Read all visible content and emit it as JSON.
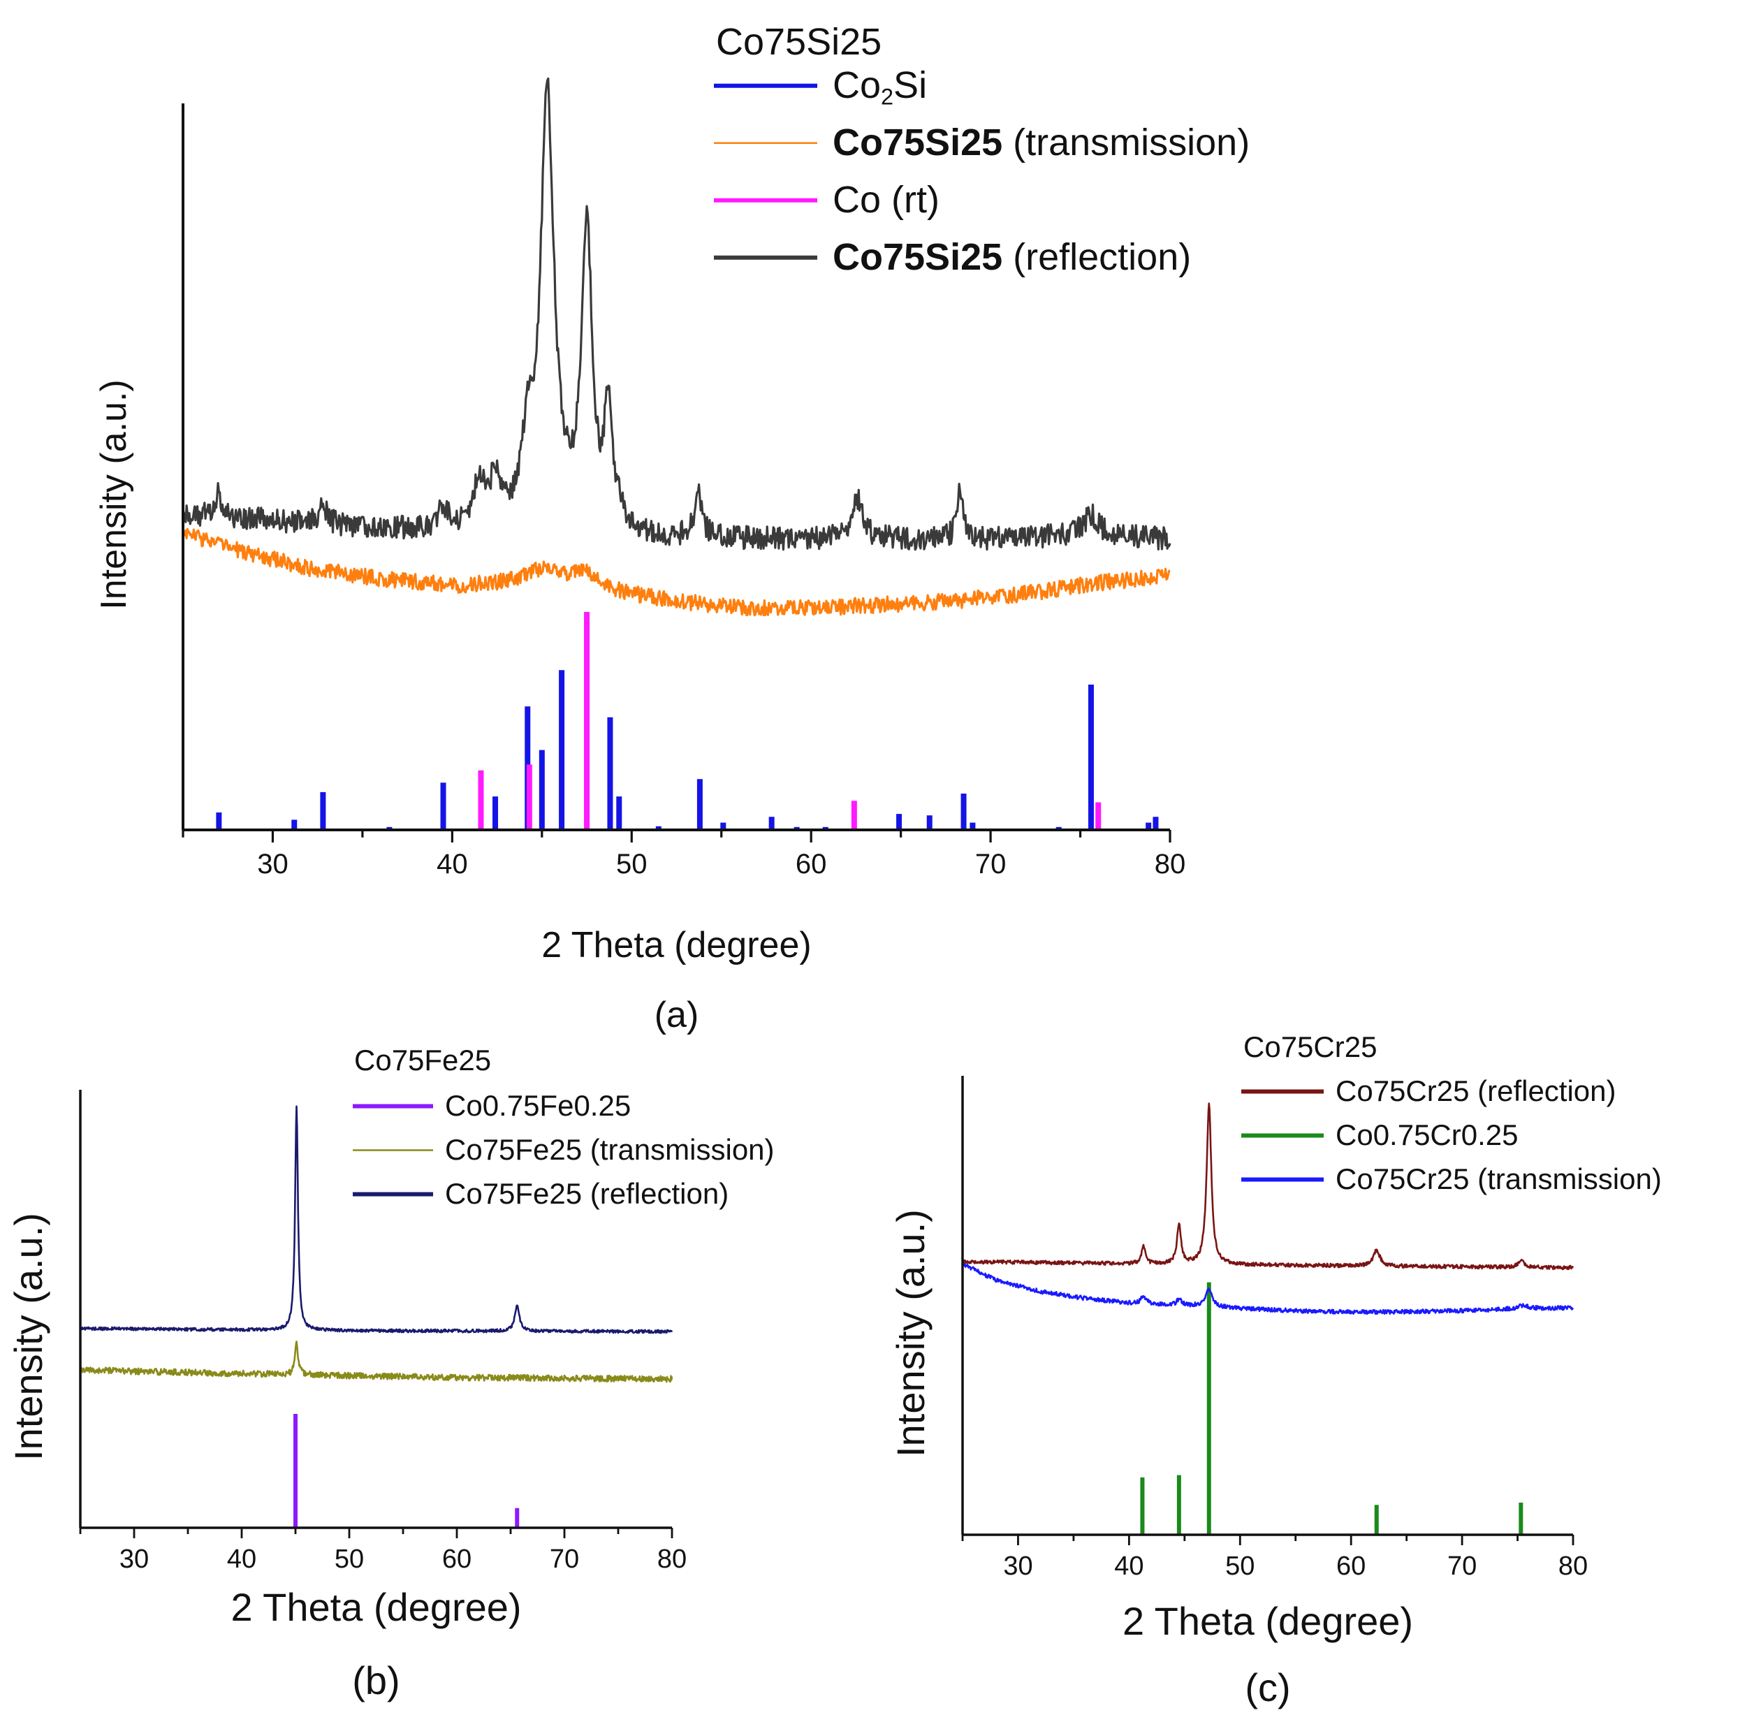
{
  "colors": {
    "co2si": "#1414e6",
    "co_rt": "#ff1aff",
    "si_transmission": "#ff7f0e",
    "si_reflection": "#3a3a3a",
    "cofe_ref": "#8c1aff",
    "fe_transmission": "#8a8a1a",
    "fe_reflection": "#1a1a6e",
    "cr_reflection": "#7a1414",
    "cocr_ref": "#1a8a1a",
    "cr_transmission": "#1a1aff"
  },
  "chart_data": [
    {
      "type": "line",
      "panel_label": "(a)",
      "legend_title": "Co75Si25",
      "xlabel": "2 Theta (degree)",
      "ylabel": "Intensity (a.u.)",
      "xlim": [
        25,
        80
      ],
      "ylim": [
        0,
        100
      ],
      "xticks": [
        30,
        40,
        50,
        60,
        70,
        80
      ],
      "legend": [
        {
          "main": "Co",
          "sub": "2",
          "tail": "Si",
          "bold": "",
          "rest": "",
          "series": "co2si"
        },
        {
          "main": "",
          "sub": "",
          "tail": "",
          "bold": "Co75Si25",
          "rest": " (transmission)",
          "series": "transmission"
        },
        {
          "main": "Co (rt)",
          "sub": "",
          "tail": "",
          "bold": "",
          "rest": "",
          "series": "co_rt"
        },
        {
          "main": "",
          "sub": "",
          "tail": "",
          "bold": "Co75Si25",
          "rest": " (reflection)",
          "series": "reflection"
        }
      ],
      "series": [
        {
          "name": "Co2Si",
          "kind": "sticks",
          "color_key": "co2si",
          "sticks": [
            [
              27,
              2.4
            ],
            [
              31.2,
              1.4
            ],
            [
              32.8,
              5.2
            ],
            [
              36.5,
              0.4
            ],
            [
              39.5,
              6.5
            ],
            [
              42.4,
              4.6
            ],
            [
              44.2,
              17
            ],
            [
              45,
              11
            ],
            [
              46.1,
              22
            ],
            [
              48.8,
              15.5
            ],
            [
              49.3,
              4.6
            ],
            [
              51.5,
              0.5
            ],
            [
              53.8,
              7
            ],
            [
              55.1,
              1
            ],
            [
              57.8,
              1.8
            ],
            [
              59.2,
              0.4
            ],
            [
              60.8,
              0.4
            ],
            [
              64.9,
              2.2
            ],
            [
              66.6,
              2
            ],
            [
              68.5,
              5
            ],
            [
              69,
              1
            ],
            [
              73.8,
              0.4
            ],
            [
              75.6,
              20
            ],
            [
              78.8,
              1
            ],
            [
              79.2,
              1.8
            ]
          ]
        },
        {
          "name": "Co (rt)",
          "kind": "sticks",
          "color_key": "co_rt",
          "sticks": [
            [
              41.6,
              8.2
            ],
            [
              44.3,
              9
            ],
            [
              47.5,
              30
            ],
            [
              62.4,
              4
            ],
            [
              76,
              3.8
            ]
          ]
        },
        {
          "name": "Co75Si25 (transmission)",
          "kind": "noisy",
          "color_key": "si_transmission",
          "baseline": [
            [
              25,
              41
            ],
            [
              28,
              38.5
            ],
            [
              32,
              36
            ],
            [
              36,
              34.5
            ],
            [
              40,
              33.5
            ],
            [
              44,
              33.5
            ],
            [
              48,
              32.8
            ],
            [
              52,
              31.5
            ],
            [
              56,
              30.6
            ],
            [
              60,
              30.5
            ],
            [
              64,
              31
            ],
            [
              68,
              31.5
            ],
            [
              72,
              32.5
            ],
            [
              76,
              34
            ],
            [
              80,
              35
            ]
          ],
          "peaks": [
            [
              45.2,
              2.5,
              1.5
            ],
            [
              47.5,
              2,
              0.8
            ]
          ],
          "noise": 1.1
        },
        {
          "name": "Co75Si25 (reflection)",
          "kind": "noisy",
          "color_key": "si_reflection",
          "baseline": [
            [
              25,
              43.5
            ],
            [
              30,
              42.5
            ],
            [
              35,
              41.5
            ],
            [
              40,
              41
            ],
            [
              45,
              41.5
            ],
            [
              50,
              40
            ],
            [
              55,
              40
            ],
            [
              60,
              40
            ],
            [
              65,
              40
            ],
            [
              70,
              40
            ],
            [
              75,
              40.5
            ],
            [
              80,
              40
            ]
          ],
          "peaks": [
            [
              27,
              4,
              0.15
            ],
            [
              32.8,
              2.5,
              0.3
            ],
            [
              39.5,
              3,
              0.3
            ],
            [
              41.5,
              6,
              0.4
            ],
            [
              42.4,
              6,
              0.35
            ],
            [
              44.2,
              10,
              0.35
            ],
            [
              45.3,
              59,
              0.45
            ],
            [
              47.5,
              42,
              0.35
            ],
            [
              48.7,
              17,
              0.25
            ],
            [
              49.3,
              3,
              0.2
            ],
            [
              53.7,
              6,
              0.25
            ],
            [
              62.6,
              5.5,
              0.35
            ],
            [
              68.3,
              6.5,
              0.2
            ],
            [
              75.6,
              3,
              0.5
            ]
          ],
          "noise": 1.6
        }
      ]
    },
    {
      "type": "line",
      "panel_label": "(b)",
      "legend_title": "Co75Fe25",
      "xlabel": "2 Theta (degree)",
      "ylabel": "Intensity (a.u.)",
      "xlim": [
        25,
        80
      ],
      "ylim": [
        0,
        100
      ],
      "xticks": [
        30,
        40,
        50,
        60,
        70,
        80
      ],
      "legend": [
        {
          "text": "Co0.75Fe0.25",
          "series": "cofe_ref"
        },
        {
          "text": "Co75Fe25 (transmission)",
          "series": "fe_transmission"
        },
        {
          "text": "Co75Fe25 (reflection)",
          "series": "fe_reflection"
        }
      ],
      "series": [
        {
          "name": "Co0.75Fe0.25",
          "kind": "sticks",
          "color_key": "cofe_ref",
          "sticks": [
            [
              45,
              26
            ],
            [
              65.6,
              4.5
            ]
          ]
        },
        {
          "name": "Co75Fe25 (transmission)",
          "kind": "noisy",
          "color_key": "fe_transmission",
          "baseline": [
            [
              25,
              36
            ],
            [
              40,
              35.2
            ],
            [
              60,
              34.3
            ],
            [
              80,
              34
            ]
          ],
          "peaks": [
            [
              45.1,
              7,
              0.18
            ]
          ],
          "noise": 0.7
        },
        {
          "name": "Co75Fe25 (reflection)",
          "kind": "noisy",
          "color_key": "fe_reflection",
          "baseline": [
            [
              25,
              45.5
            ],
            [
              50,
              45
            ],
            [
              80,
              44.8
            ]
          ],
          "peaks": [
            [
              45.1,
              51,
              0.16
            ],
            [
              65.6,
              6,
              0.25
            ]
          ],
          "noise": 0.35
        }
      ]
    },
    {
      "type": "line",
      "panel_label": "(c)",
      "legend_title": "Co75Cr25",
      "xlabel": "2 Theta (degree)",
      "ylabel": "Intensity (a.u.)",
      "xlim": [
        25,
        80
      ],
      "ylim": [
        0,
        100
      ],
      "xticks": [
        30,
        40,
        50,
        60,
        70,
        80
      ],
      "legend": [
        {
          "text": "Co75Cr25 (reflection)",
          "series": "cr_reflection"
        },
        {
          "text": "Co0.75Cr0.25",
          "series": "cocr_ref"
        },
        {
          "text": "Co75Cr25 (transmission)",
          "series": "cr_transmission"
        }
      ],
      "series": [
        {
          "name": "Co0.75Cr0.25",
          "kind": "sticks",
          "color_key": "cocr_ref",
          "sticks": [
            [
              41.2,
              12.5
            ],
            [
              44.5,
              13
            ],
            [
              47.2,
              55
            ],
            [
              62.3,
              6.5
            ],
            [
              75.3,
              7
            ]
          ]
        },
        {
          "name": "Co75Cr25 (transmission)",
          "kind": "noisy",
          "color_key": "cr_transmission",
          "baseline": [
            [
              25,
              59
            ],
            [
              28,
              55.5
            ],
            [
              32,
              53
            ],
            [
              36,
              51.5
            ],
            [
              40,
              50.5
            ],
            [
              45,
              50
            ],
            [
              50,
              49.3
            ],
            [
              55,
              48.8
            ],
            [
              60,
              48.5
            ],
            [
              65,
              48.6
            ],
            [
              70,
              48.8
            ],
            [
              75,
              49.2
            ],
            [
              80,
              49.5
            ]
          ],
          "peaks": [
            [
              41.3,
              1.8,
              0.25
            ],
            [
              44.5,
              1.2,
              0.25
            ],
            [
              47.2,
              4,
              0.35
            ],
            [
              75.5,
              0.7,
              0.6
            ]
          ],
          "noise": 0.45
        },
        {
          "name": "Co75Cr25 (reflection)",
          "kind": "noisy",
          "color_key": "cr_reflection",
          "baseline": [
            [
              25,
              59.5
            ],
            [
              50,
              58.8
            ],
            [
              80,
              58.2
            ]
          ],
          "peaks": [
            [
              41.3,
              3.8,
              0.2
            ],
            [
              44.5,
              8.5,
              0.22
            ],
            [
              47.2,
              35,
              0.25
            ],
            [
              62.3,
              3.5,
              0.35
            ],
            [
              75.3,
              1.5,
              0.3
            ]
          ],
          "noise": 0.4
        }
      ]
    }
  ]
}
